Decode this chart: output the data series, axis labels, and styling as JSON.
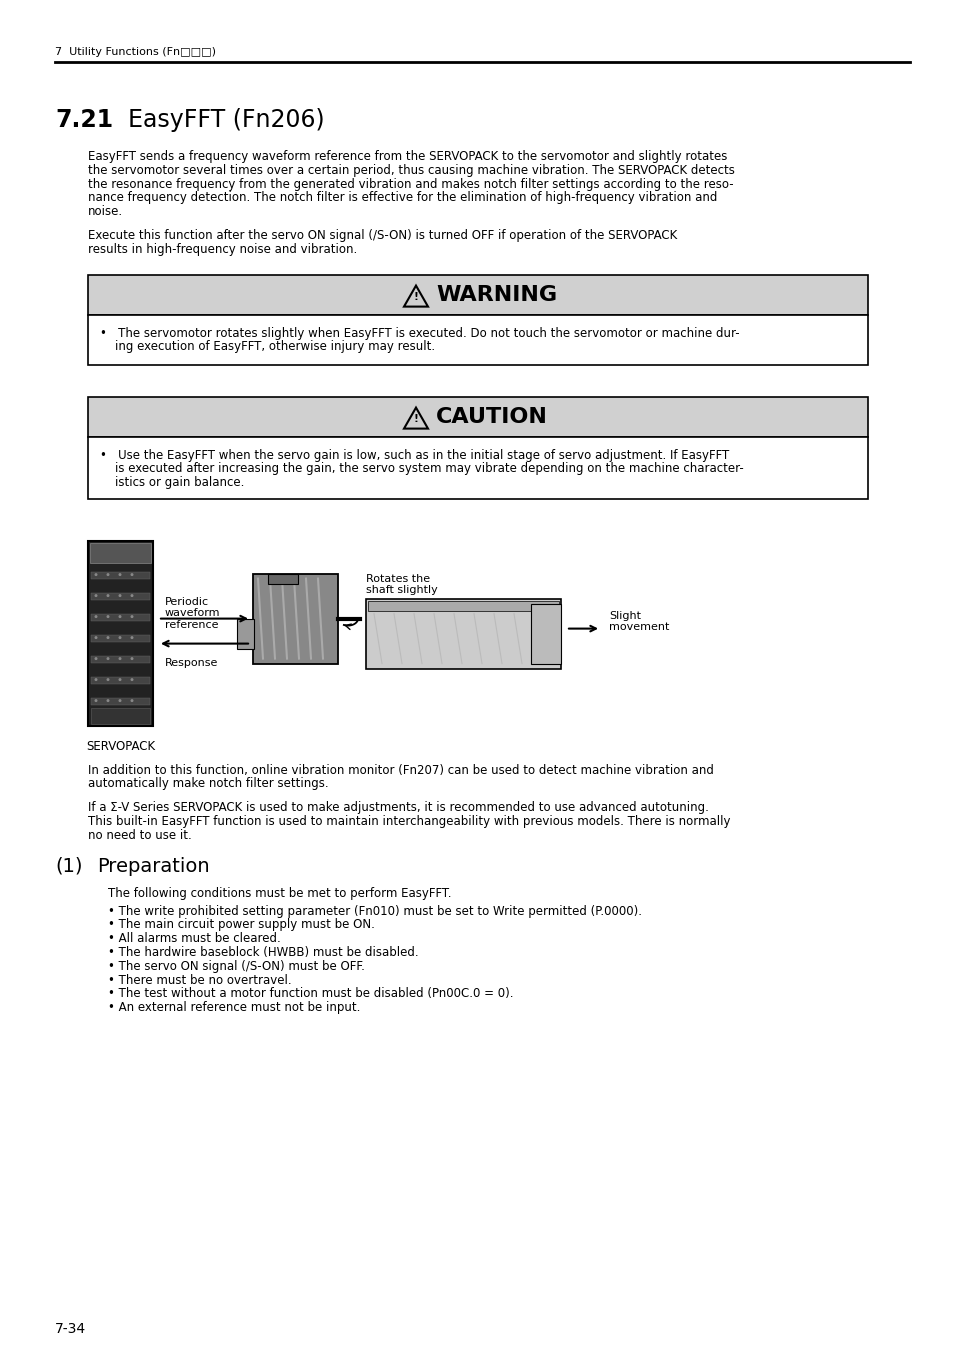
{
  "bg_color": "#ffffff",
  "header_text": "7  Utility Functions (Fn□□□)",
  "section_number": "7.21",
  "section_title": "EasyFFT (Fn206)",
  "body1_lines": [
    "EasyFFT sends a frequency waveform reference from the SERVOPACK to the servomotor and slightly rotates",
    "the servomotor several times over a certain period, thus causing machine vibration. The SERVOPACK detects",
    "the resonance frequency from the generated vibration and makes notch filter settings according to the reso-",
    "nance frequency detection. The notch filter is effective for the elimination of high-frequency vibration and",
    "noise."
  ],
  "body2_lines": [
    "Execute this function after the servo ON signal (/S-ON) is turned OFF if operation of the SERVOPACK",
    "results in high-frequency noise and vibration."
  ],
  "warning_title": "WARNING",
  "warning_body_lines": [
    "•   The servomotor rotates slightly when EasyFFT is executed. Do not touch the servomotor or machine dur-",
    "    ing execution of EasyFFT, otherwise injury may result."
  ],
  "caution_title": "CAUTION",
  "caution_body_lines": [
    "•   Use the EasyFFT when the servo gain is low, such as in the initial stage of servo adjustment. If EasyFFT",
    "    is executed after increasing the gain, the servo system may vibrate depending on the machine character-",
    "    istics or gain balance."
  ],
  "diag_label_periodic": "Periodic\nwaveform\nreference",
  "diag_label_rotates": "Rotates the\nshaft slightly",
  "diag_label_slight": "Slight\nmovement",
  "diag_label_response": "Response",
  "diag_label_servopack": "SERVOPACK",
  "body3_lines": [
    "In addition to this function, online vibration monitor (Fn207) can be used to detect machine vibration and",
    "automatically make notch filter settings."
  ],
  "body4_lines": [
    "If a Σ-V Series SERVOPACK is used to make adjustments, it is recommended to use advanced autotuning.",
    "This built-in EasyFFT function is used to maintain interchangeability with previous models. There is normally",
    "no need to use it."
  ],
  "sub_number": "(1)",
  "sub_title": "Preparation",
  "prep_intro": "The following conditions must be met to perform EasyFFT.",
  "prep_bullets": [
    "• The write prohibited setting parameter (Fn010) must be set to Write permitted (P.0000).",
    "• The main circuit power supply must be ON.",
    "• All alarms must be cleared.",
    "• The hardwire baseblock (HWBB) must be disabled.",
    "• The servo ON signal (/S-ON) must be OFF.",
    "• There must be no overtravel.",
    "• The test without a motor function must be disabled (Pn00C.0 = 0).",
    "• An external reference must not be input."
  ],
  "footer": "7-34",
  "box_gray": "#d0d0d0",
  "box_border": "#000000"
}
